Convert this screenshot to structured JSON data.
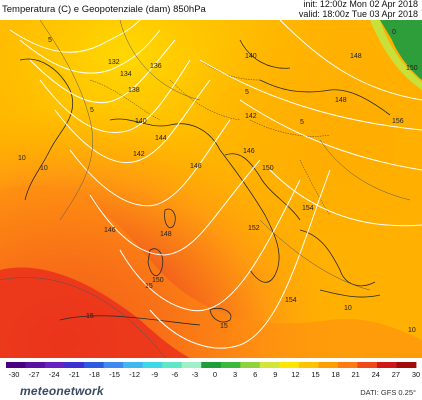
{
  "header": {
    "title": "Temperatura (C) e Geopotenziale (dam) 850hPa",
    "init": "init: 12:00z Mon 02 Apr 2018",
    "valid": "valid: 18:00z Tue 03 Apr 2018"
  },
  "map": {
    "geopotential_labels": [
      "132",
      "134",
      "136",
      "138",
      "140",
      "140",
      "142",
      "142",
      "144",
      "146",
      "146",
      "146",
      "148",
      "148",
      "148",
      "150",
      "150",
      "150",
      "152",
      "154",
      "154",
      "156"
    ],
    "temperature_labels": [
      "5",
      "5",
      "5",
      "5",
      "0",
      "10",
      "10",
      "10",
      "10",
      "15",
      "15",
      "15"
    ],
    "colors": {
      "green": "#2e9e3a",
      "yellow": "#ffe600",
      "orange": "#ffa500",
      "red": "#e8281e",
      "contour": "#ffffff"
    }
  },
  "colorbar": {
    "ticks": [
      "-30",
      "-27",
      "-24",
      "-21",
      "-18",
      "-15",
      "-12",
      "-9",
      "-6",
      "-3",
      "0",
      "3",
      "6",
      "9",
      "12",
      "15",
      "18",
      "21",
      "24",
      "27",
      "30"
    ],
    "colors": [
      "#4b0082",
      "#5a10a0",
      "#6a1fc0",
      "#3d2fd0",
      "#2c5be0",
      "#3f8af0",
      "#3fb8f0",
      "#3fd8e8",
      "#5fe8c8",
      "#9ff0c8",
      "#1e9e3a",
      "#3cb83a",
      "#8fd23a",
      "#d4e53a",
      "#ffe600",
      "#ffc400",
      "#ffa000",
      "#ff7a10",
      "#f04a1a",
      "#d01818",
      "#a00c0c"
    ]
  },
  "footer": {
    "brand": "meteonetwork",
    "credit": "DATI: GFS 0.25°"
  }
}
